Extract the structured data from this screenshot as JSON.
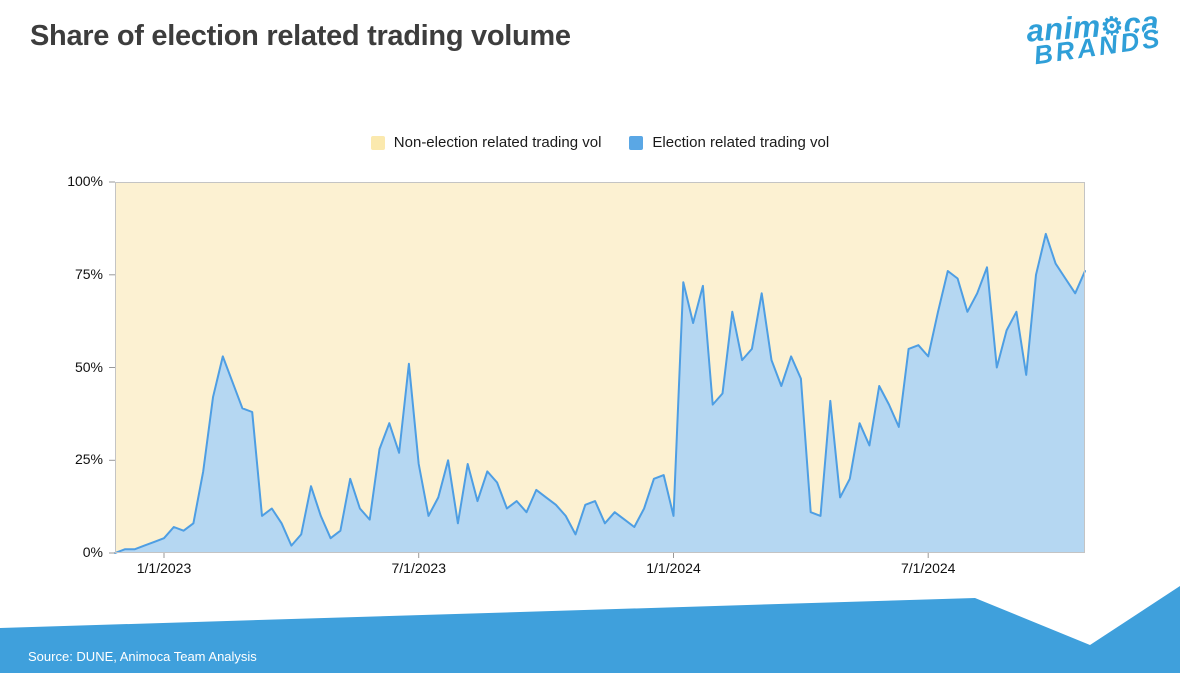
{
  "header": {
    "title": "Share of election related trading volume",
    "logo": {
      "word1_pre": "anim",
      "word1_gear": "⚙",
      "word1_post": "ca",
      "word2": "BRANDS"
    }
  },
  "legend": {
    "items": [
      {
        "key": "non-election",
        "label": "Non-election related trading vol",
        "color": "#fbe9ae"
      },
      {
        "key": "election",
        "label": "Election related trading vol",
        "color": "#5aa7e5"
      }
    ]
  },
  "footer": {
    "source": "Source: DUNE, Animoca Team Analysis"
  },
  "colors": {
    "plot_background_nonelection": "#fcf1d2",
    "election_area_fill": "#b5d7f2",
    "election_line": "#4e9ee3",
    "banner_blue": "#3fa0dc",
    "logo_blue": "#2f9fd8",
    "plot_border": "#c4c4c4",
    "tick": "#999999"
  },
  "chart_data": {
    "type": "area",
    "stacked_share": true,
    "title": "Share of election related trading volume",
    "xlabel": "",
    "ylabel": "",
    "ylim": [
      0,
      100
    ],
    "grid": false,
    "legend_position": "top",
    "y_ticks": [
      {
        "label": "100%",
        "value": 100
      },
      {
        "label": "75%",
        "value": 75
      },
      {
        "label": "50%",
        "value": 50
      },
      {
        "label": "25%",
        "value": 25
      },
      {
        "label": "0%",
        "value": 0
      }
    ],
    "x_ticks": [
      {
        "label": "1/1/2023",
        "index": 5
      },
      {
        "label": "7/1/2023",
        "index": 31
      },
      {
        "label": "1/1/2024",
        "index": 57
      },
      {
        "label": "7/1/2024",
        "index": 83
      }
    ],
    "x_start": "2022-11-27",
    "x_interval": "weekly",
    "series": [
      {
        "name": "Election related trading vol",
        "unit": "%",
        "values": [
          0,
          1,
          1,
          2,
          3,
          4,
          7,
          6,
          8,
          22,
          42,
          53,
          46,
          39,
          38,
          10,
          12,
          8,
          2,
          5,
          18,
          10,
          4,
          6,
          20,
          12,
          9,
          28,
          35,
          27,
          51,
          24,
          10,
          15,
          25,
          8,
          24,
          14,
          22,
          19,
          12,
          14,
          11,
          17,
          15,
          13,
          10,
          5,
          13,
          14,
          8,
          11,
          9,
          7,
          12,
          20,
          21,
          10,
          73,
          62,
          72,
          40,
          43,
          65,
          52,
          55,
          70,
          52,
          45,
          53,
          47,
          11,
          10,
          41,
          15,
          20,
          35,
          29,
          45,
          40,
          34,
          55,
          56,
          53,
          65,
          76,
          74,
          65,
          70,
          77,
          50,
          60,
          65,
          48,
          75,
          86,
          78,
          74,
          70,
          76
        ]
      },
      {
        "name": "Non-election related trading vol",
        "unit": "%",
        "note": "complement to 100% (stacked share)"
      }
    ]
  }
}
